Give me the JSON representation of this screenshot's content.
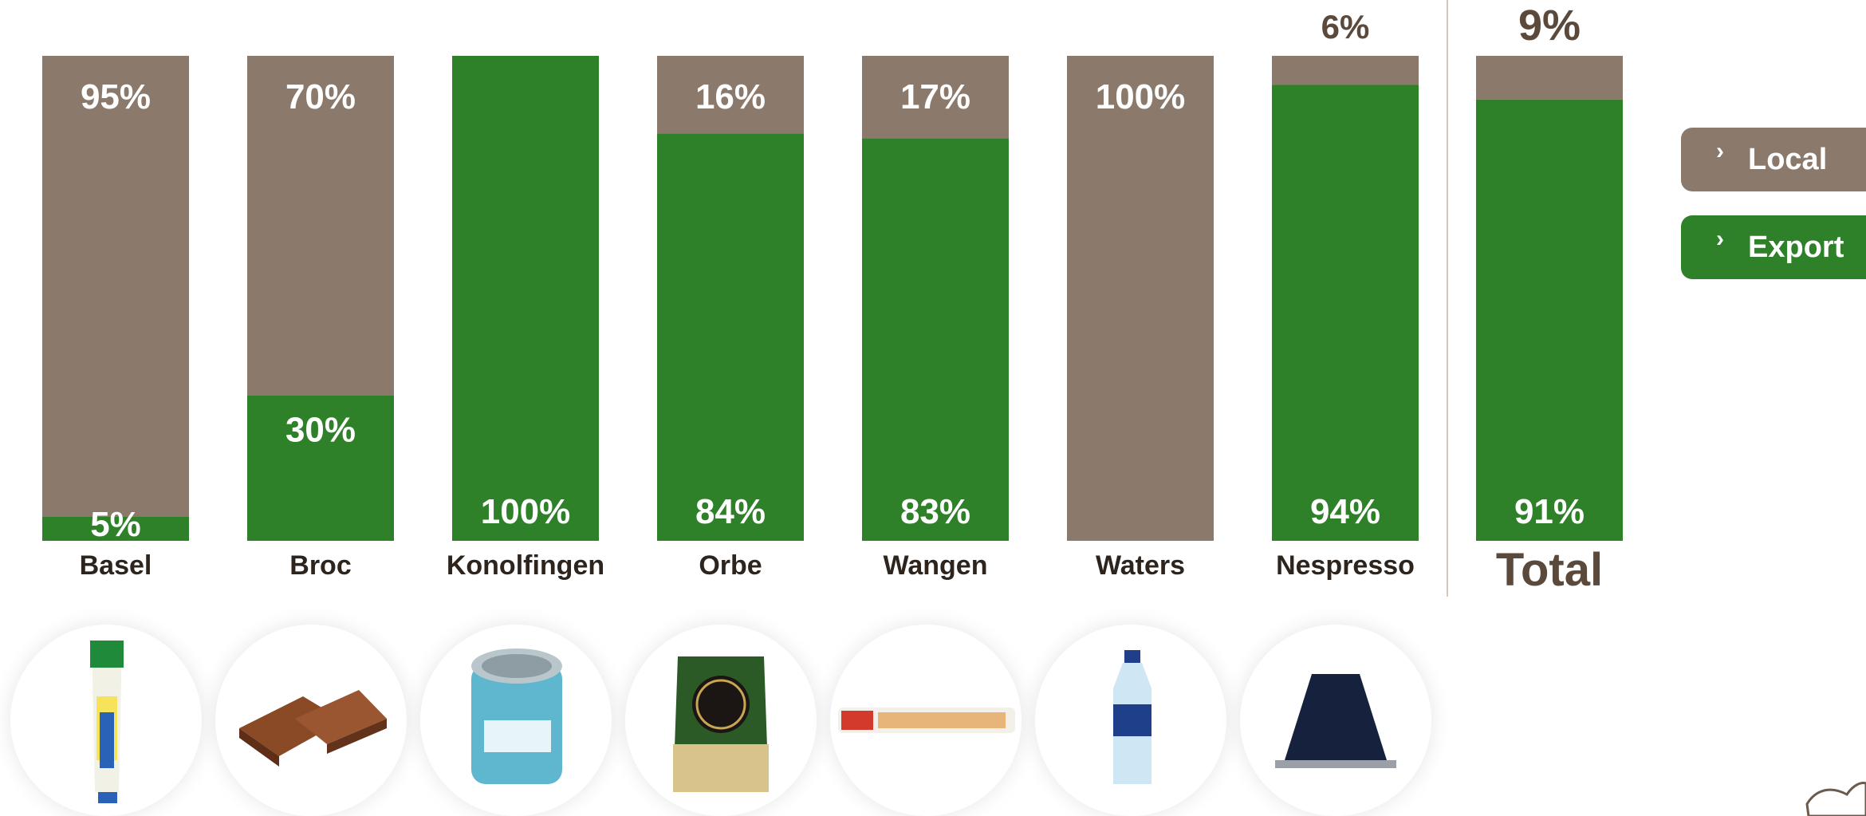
{
  "chart_data": {
    "type": "bar",
    "stacked": true,
    "percent": true,
    "categories": [
      "Basel",
      "Broc",
      "Konolfingen",
      "Orbe",
      "Wangen",
      "Waters",
      "Nespresso",
      "Total"
    ],
    "series": [
      {
        "name": "Local",
        "values": [
          95,
          70,
          0,
          16,
          17,
          100,
          6,
          9
        ],
        "labels": [
          "95%",
          "70%",
          "",
          "16%",
          "17%",
          "100%",
          "6%",
          "9%"
        ]
      },
      {
        "name": "Export",
        "values": [
          5,
          30,
          100,
          84,
          83,
          0,
          94,
          91
        ],
        "labels": [
          "5%",
          "30%",
          "100%",
          "84%",
          "83%",
          "",
          "94%",
          "91%"
        ]
      }
    ],
    "ylim": [
      0,
      100
    ],
    "legend_position": "right",
    "grid": false
  },
  "legend": [
    {
      "label": "Local",
      "color": "#8b7a6b",
      "icon": "chevron-right-icon"
    },
    {
      "label": "Export",
      "color": "#2e8128",
      "icon": "chevron-right-icon"
    }
  ],
  "colors": {
    "local": "#8b7a6b",
    "export": "#2e8128",
    "divider": "#d9c6b4",
    "total_text": "#5b4a3c"
  },
  "products": [
    {
      "icon": "mayo-tube-icon"
    },
    {
      "icon": "chocolate-icon"
    },
    {
      "icon": "milk-powder-tin-icon"
    },
    {
      "icon": "coffee-pouch-icon"
    },
    {
      "icon": "pastry-dough-icon"
    },
    {
      "icon": "water-bottle-icon"
    },
    {
      "icon": "coffee-capsule-icon"
    }
  ],
  "brand": {
    "icon": "nest-logo-icon"
  }
}
